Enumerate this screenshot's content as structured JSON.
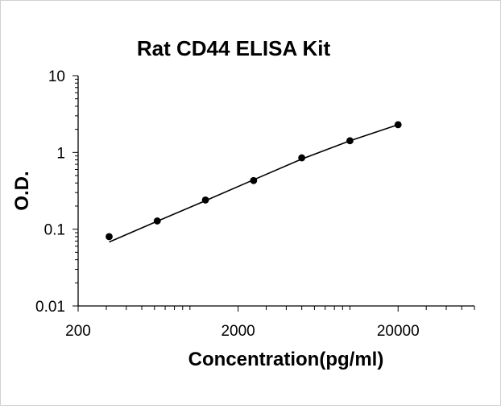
{
  "chart_data": {
    "type": "scatter",
    "title": "Rat CD44 ELISA Kit",
    "xlabel": "Concentration(pg/ml)",
    "ylabel": "O.D.",
    "x_scale": "log",
    "y_scale": "log",
    "xlim": [
      200,
      60000
    ],
    "ylim": [
      0.01,
      10
    ],
    "x_tick_labels": [
      "200",
      "2000",
      "20000"
    ],
    "y_tick_labels": [
      "10",
      "1",
      "0.1",
      "0.01"
    ],
    "x_ticks": [
      200,
      2000,
      20000
    ],
    "y_ticks": [
      10,
      1,
      0.1,
      0.01
    ],
    "grid": false,
    "legend": "none",
    "colors": {
      "points": "#000000",
      "line": "#000000",
      "axes": "#000000"
    },
    "series": [
      {
        "x": [
          312.5,
          625,
          1250,
          2500,
          5000,
          10000,
          20000
        ],
        "y": [
          0.08,
          0.128,
          0.24,
          0.43,
          0.85,
          1.42,
          2.3
        ]
      }
    ],
    "fit_curve": {
      "x": [
        312.5,
        625,
        1250,
        2500,
        5000,
        10000,
        20000
      ],
      "y": [
        0.068,
        0.127,
        0.235,
        0.44,
        0.82,
        1.42,
        2.3
      ]
    }
  }
}
